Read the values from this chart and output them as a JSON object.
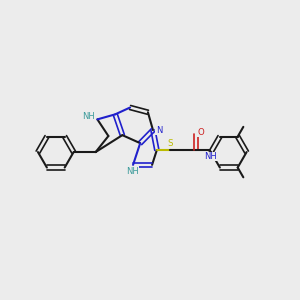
{
  "bg": "#ececec",
  "Cc": "#1a1a1a",
  "Nc": "#2020cc",
  "NHc": "#3a9a9a",
  "Sc": "#bbbb00",
  "Oc": "#cc2020",
  "figsize": [
    3.0,
    3.0
  ],
  "dpi": 100,
  "xlim": [
    0,
    10
  ],
  "ylim": [
    0,
    10
  ]
}
